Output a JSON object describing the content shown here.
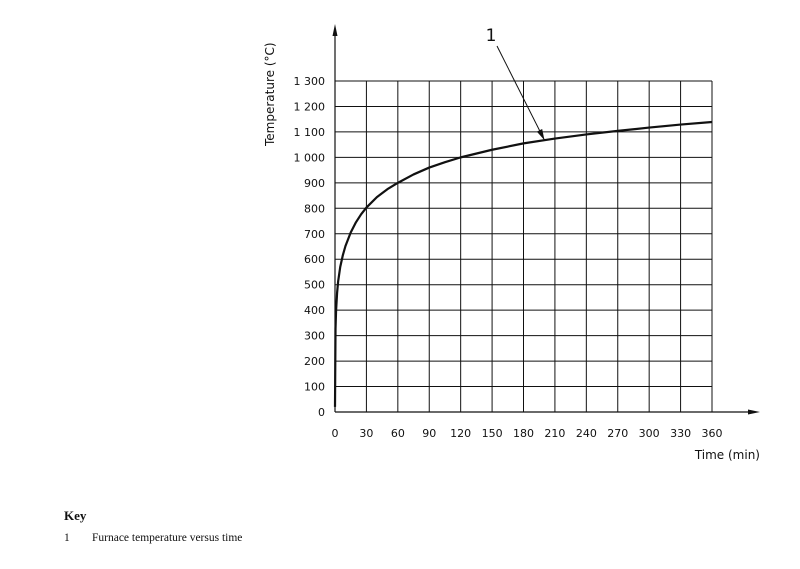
{
  "chart_data": {
    "type": "line",
    "xlabel": "Time (min)",
    "ylabel": "Temperature (°C)",
    "xlim": [
      0,
      360
    ],
    "ylim": [
      0,
      1300
    ],
    "x_ticks": [
      0,
      30,
      60,
      90,
      120,
      150,
      180,
      210,
      240,
      270,
      300,
      330,
      360
    ],
    "x_tick_labels": [
      "0",
      "30",
      "60",
      "90",
      "120",
      "150",
      "180",
      "210",
      "240",
      "270",
      "300",
      "330",
      "360"
    ],
    "y_ticks": [
      0,
      100,
      200,
      300,
      400,
      500,
      600,
      700,
      800,
      900,
      1000,
      1100,
      1200,
      1300
    ],
    "y_tick_labels": [
      "0",
      "100",
      "200",
      "300",
      "400",
      "500",
      "600",
      "700",
      "800",
      "900",
      "1 000",
      "1 100",
      "1 200",
      "1 300"
    ],
    "grid": true,
    "series": [
      {
        "label": "1",
        "x": [
          0,
          0.5,
          1,
          2,
          3,
          5,
          7.5,
          10,
          15,
          20,
          25,
          30,
          40,
          50,
          60,
          75,
          90,
          105,
          120,
          150,
          180,
          210,
          240,
          270,
          300,
          330,
          360
        ],
        "y": [
          20,
          327,
          396,
          468,
          513,
          570,
          616,
          652,
          705,
          745,
          777,
          803,
          844,
          875,
          900,
          933,
          960,
          981,
          1000,
          1030,
          1055,
          1074,
          1090,
          1104,
          1117,
          1129,
          1139
        ]
      }
    ],
    "callout": {
      "label": "1",
      "at_x": 200
    }
  },
  "key": {
    "title": "Key",
    "items": [
      {
        "number": "1",
        "text": "Furnace temperature versus time"
      }
    ]
  }
}
